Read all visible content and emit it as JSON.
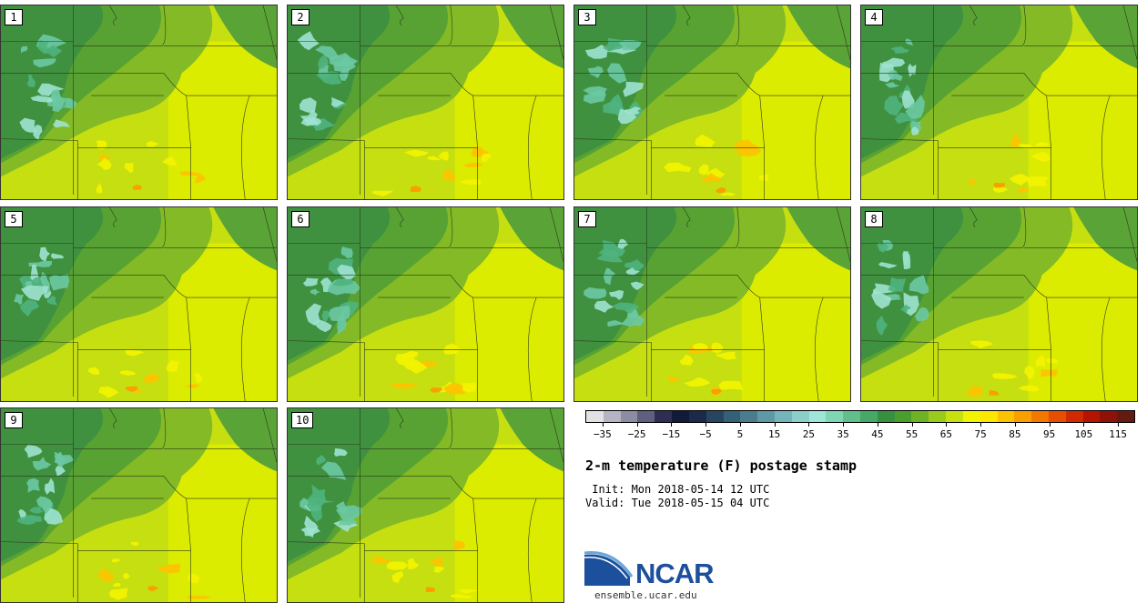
{
  "panels": [
    {
      "label": "1"
    },
    {
      "label": "2"
    },
    {
      "label": "3"
    },
    {
      "label": "4"
    },
    {
      "label": "5"
    },
    {
      "label": "6"
    },
    {
      "label": "7"
    },
    {
      "label": "8"
    },
    {
      "label": "9"
    },
    {
      "label": "10"
    }
  ],
  "legend": {
    "colors": [
      "#e1e1e6",
      "#b4b4c3",
      "#8c8ca5",
      "#5f5f80",
      "#2e2e55",
      "#121a3a",
      "#1b2a4a",
      "#284560",
      "#35607a",
      "#4a7c8e",
      "#5e99a5",
      "#74b5b9",
      "#8bcfcb",
      "#9de6d9",
      "#7fd6b2",
      "#5fc08b",
      "#45a866",
      "#37903f",
      "#4a9e2e",
      "#6db325",
      "#9acb1c",
      "#c9e010",
      "#f2f300",
      "#fde700",
      "#fcc400",
      "#f99f00",
      "#f47800",
      "#e74e00",
      "#d12a00",
      "#b51500",
      "#8e1208",
      "#641a10"
    ],
    "tick_labels": [
      "−35",
      "−25",
      "−15",
      "−5",
      "5",
      "15",
      "25",
      "35",
      "45",
      "55",
      "65",
      "75",
      "85",
      "95",
      "105",
      "115"
    ]
  },
  "title": "2-m temperature (F) postage stamp",
  "init_text": " Init: Mon 2018-05-14 12 UTC",
  "valid_text": "Valid: Tue 2018-05-15 04 UTC",
  "logo": {
    "name": "NCAR",
    "url": "ensemble.ucar.edu",
    "color": "#1c4f9c"
  }
}
